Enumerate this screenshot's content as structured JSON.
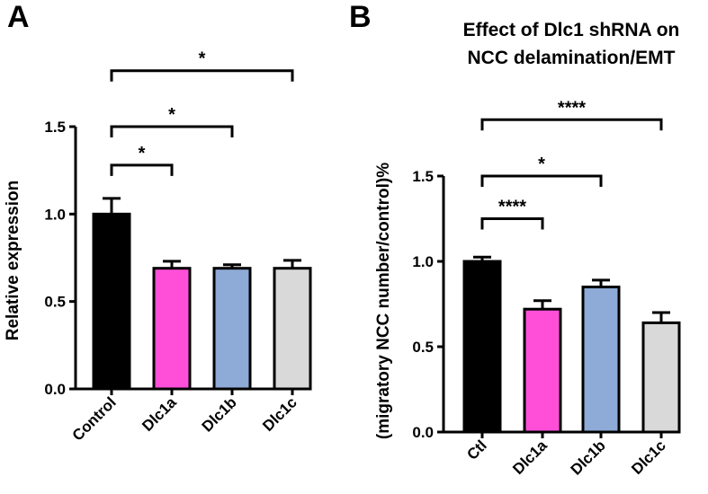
{
  "figure": {
    "panel_a": "A",
    "panel_b": "B"
  },
  "chart_data": [
    {
      "type": "bar",
      "panel": "A",
      "title": "",
      "xlabel": "",
      "ylabel": "Relative expression",
      "ylim": [
        0,
        1.5
      ],
      "yticks": [
        0.0,
        0.5,
        1.0,
        1.5
      ],
      "ytick_labels": [
        "0.0",
        "0.5",
        "1.0",
        "1.5"
      ],
      "categories": [
        "Control",
        "Dlc1a",
        "Dlc1b",
        "Dlc1c"
      ],
      "values": [
        1.0,
        0.69,
        0.69,
        0.69
      ],
      "errors": [
        0.09,
        0.04,
        0.02,
        0.045
      ],
      "colors": [
        "#000000",
        "#ff4fd8",
        "#8eaad6",
        "#d9d9d9"
      ],
      "significance": [
        {
          "from": 0,
          "to": 1,
          "label": "*",
          "y": 1.28
        },
        {
          "from": 0,
          "to": 2,
          "label": "*",
          "y": 1.5
        },
        {
          "from": 0,
          "to": 3,
          "label": "*",
          "y": 1.82
        }
      ]
    },
    {
      "type": "bar",
      "panel": "B",
      "title": "Effect of Dlc1 shRNA on NCC delamination/EMT",
      "title_lines": [
        "Effect of Dlc1 shRNA on",
        "NCC delamination/EMT"
      ],
      "xlabel": "",
      "ylabel": "(migratory NCC number/control)%",
      "ylim": [
        0,
        1.5
      ],
      "yticks": [
        0.0,
        0.5,
        1.0,
        1.5
      ],
      "ytick_labels": [
        "0.0",
        "0.5",
        "1.0",
        "1.5"
      ],
      "categories": [
        "Ctl",
        "Dlc1a",
        "Dlc1b",
        "Dlc1c"
      ],
      "values": [
        1.0,
        0.72,
        0.85,
        0.64
      ],
      "errors": [
        0.025,
        0.05,
        0.04,
        0.06
      ],
      "colors": [
        "#000000",
        "#ff4fd8",
        "#8eaad6",
        "#d9d9d9"
      ],
      "significance": [
        {
          "from": 0,
          "to": 1,
          "label": "****",
          "y": 1.25
        },
        {
          "from": 0,
          "to": 2,
          "label": "*",
          "y": 1.5
        },
        {
          "from": 0,
          "to": 3,
          "label": "****",
          "y": 1.83
        }
      ]
    }
  ]
}
